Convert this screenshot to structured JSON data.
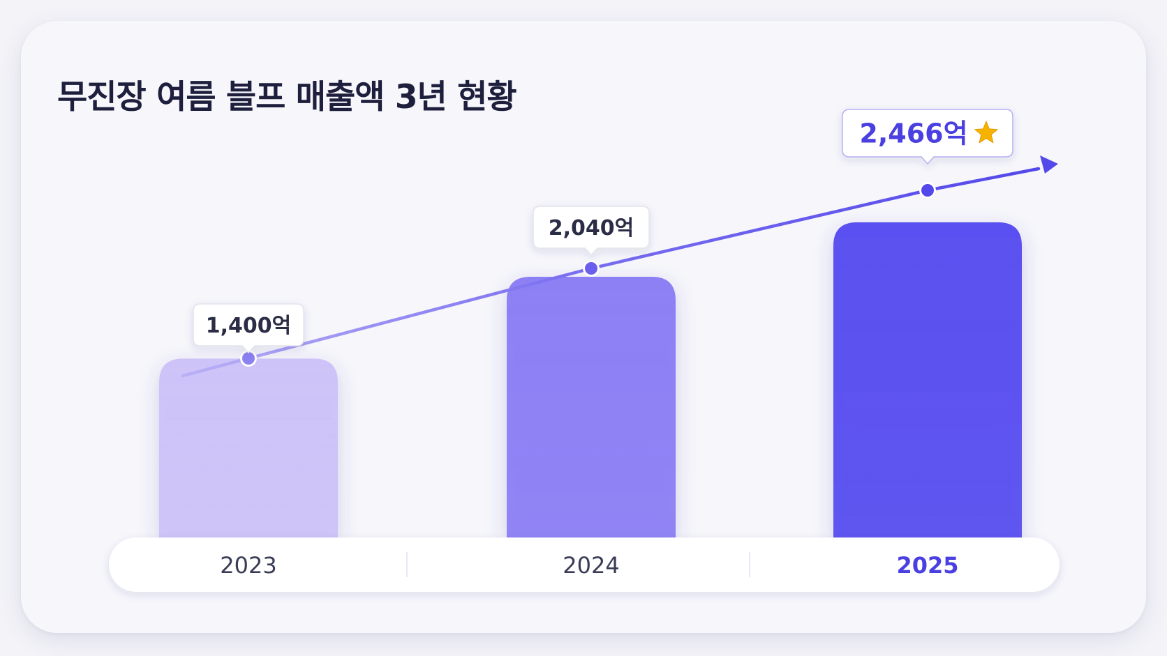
{
  "colors": {
    "title": "#1d1f3d",
    "bar_2023": "#cdc3f8",
    "bar_2024": "#8d80f5",
    "bar_2025": "#5a50f0",
    "line": "#5348ea",
    "callout_text": "#2b2d47",
    "highlight_text": "#4a3fe0",
    "star": "#f5b300"
  },
  "chart_data": {
    "type": "bar",
    "title": "무진장 여름 블프 매출액 3년 현황",
    "categories": [
      "2023",
      "2024",
      "2025"
    ],
    "values": [
      1400,
      2040,
      2466
    ],
    "data_labels": [
      "1,400억",
      "2,040억",
      "2,466억"
    ],
    "highlight_index": 2,
    "highlight_icon": "star-icon",
    "trend_line": true,
    "unit": "억",
    "ylim": [
      0,
      2700
    ],
    "grid": false,
    "legend": "none"
  }
}
